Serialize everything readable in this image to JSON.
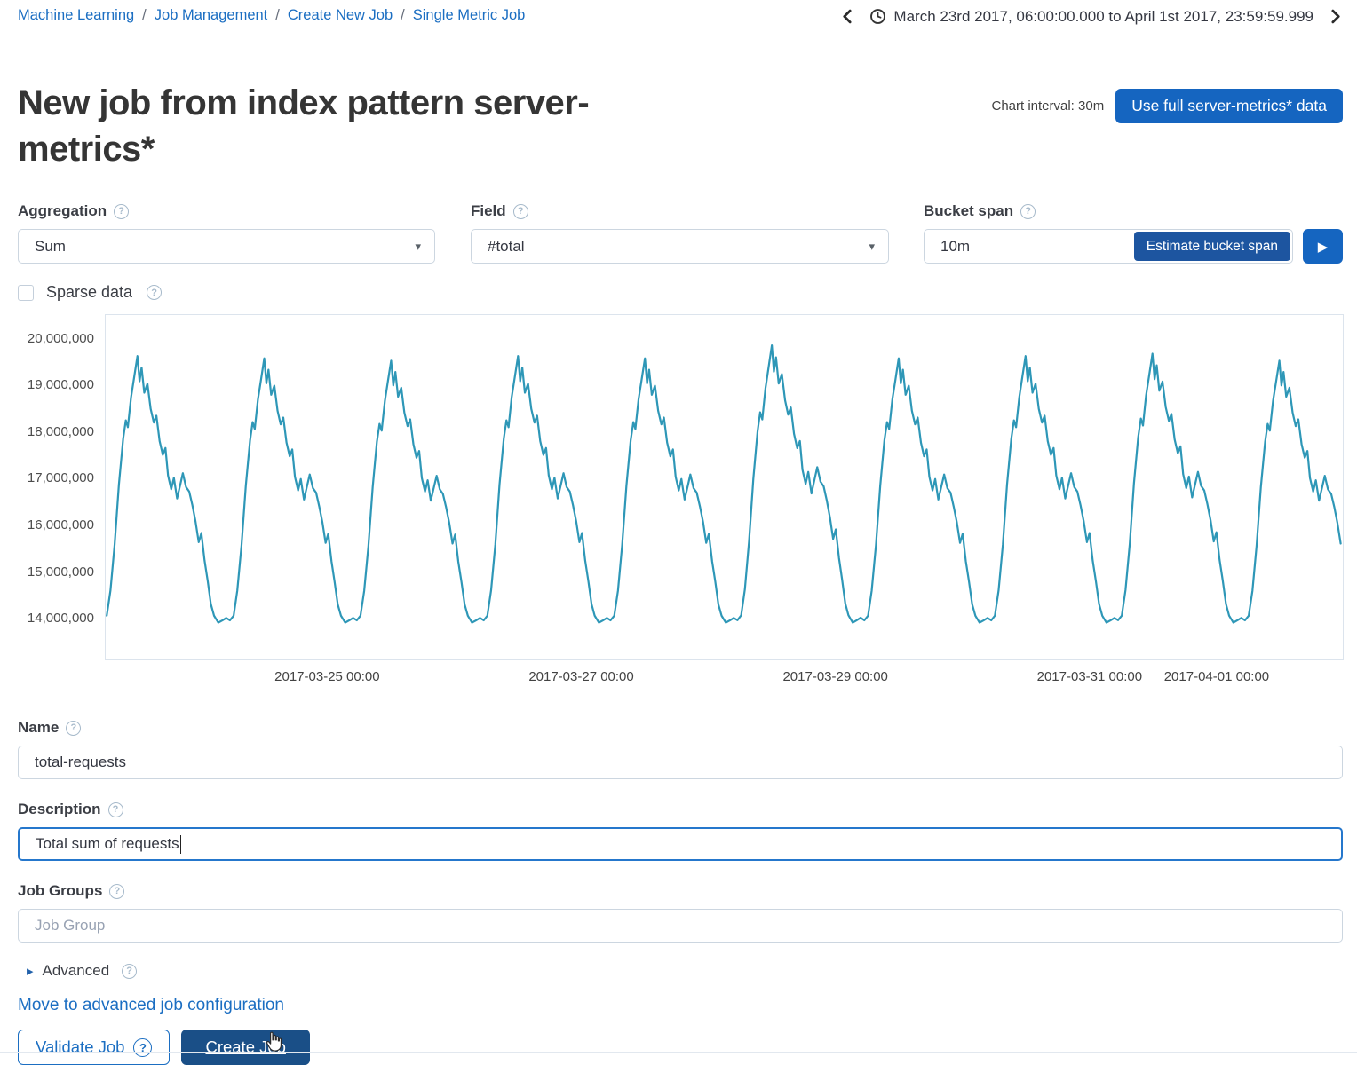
{
  "breadcrumb": {
    "separator": "/",
    "items": [
      "Machine Learning",
      "Job Management",
      "Create New Job",
      "Single Metric Job"
    ]
  },
  "timepicker": {
    "range": "March 23rd 2017, 06:00:00.000 to April 1st 2017, 23:59:59.999"
  },
  "header": {
    "title": "New job from index pattern server-metrics*",
    "chart_interval_label": "Chart interval: 30m",
    "full_data_button": "Use full server-metrics* data"
  },
  "form": {
    "aggregation": {
      "label": "Aggregation",
      "value": "Sum"
    },
    "field": {
      "label": "Field",
      "value": "#total"
    },
    "bucket_span": {
      "label": "Bucket span",
      "value": "10m",
      "estimate_button": "Estimate bucket span"
    },
    "sparse_data_label": "Sparse data",
    "name": {
      "label": "Name",
      "value": "total-requests"
    },
    "description": {
      "label": "Description",
      "value": "Total sum of requests"
    },
    "job_groups": {
      "label": "Job Groups",
      "placeholder": "Job Group"
    },
    "advanced_label": "Advanced",
    "advanced_link": "Move to advanced job configuration",
    "validate_button": "Validate Job",
    "create_button": "Create Job"
  },
  "icons": {
    "help": "?",
    "dropdown_caret": "▾",
    "play": "▶",
    "advanced_arrow": "▸"
  },
  "colors": {
    "link_blue": "#1b6ec2",
    "primary_button_blue": "#1565c0",
    "estimate_button_blue": "#1d55a0",
    "create_button_blue": "#1a4f87",
    "chart_line_teal": "#2e97b7"
  },
  "chart_data": {
    "type": "line",
    "title": "",
    "xlabel": "",
    "ylabel": "",
    "grid": false,
    "legend": false,
    "line_color": "#2e97b7",
    "x_domain": {
      "start": "2017-03-23 06:00",
      "end": "2017-04-02 00:00",
      "hours": 234
    },
    "x_ticks": [
      {
        "hours": 42,
        "label": "2017-03-25 00:00"
      },
      {
        "hours": 90,
        "label": "2017-03-27 00:00"
      },
      {
        "hours": 138,
        "label": "2017-03-29 00:00"
      },
      {
        "hours": 186,
        "label": "2017-03-31 00:00"
      },
      {
        "hours": 210,
        "label": "2017-04-01 00:00"
      }
    ],
    "y_ticks": [
      {
        "value": 20000000,
        "label": "20,000,000"
      },
      {
        "value": 19000000,
        "label": "19,000,000"
      },
      {
        "value": 18000000,
        "label": "18,000,000"
      },
      {
        "value": 17000000,
        "label": "17,000,000"
      },
      {
        "value": 16000000,
        "label": "16,000,000"
      },
      {
        "value": 15000000,
        "label": "15,000,000"
      },
      {
        "value": 14000000,
        "label": "14,000,000"
      }
    ],
    "ylim": [
      13105000,
      20533000
    ],
    "series": [
      {
        "name": "sum(total)",
        "pattern": "repeating daily cycle, ~10 cycles over the span",
        "period_hours": 24,
        "first_trough_hour": -0.5,
        "num_days": 10,
        "baseline_millions": 13.9,
        "template_peak_millions": 19.7,
        "daily_peaks_millions": [
          19.65,
          19.6,
          19.55,
          19.65,
          19.6,
          19.88,
          19.6,
          19.65,
          19.7,
          19.55
        ],
        "daily_template": {
          "hours_from_trough": [
            0,
            0.7,
            1.4,
            2.2,
            3,
            3.8,
            4.3,
            4.7,
            5.3,
            5.9,
            6.5,
            6.9,
            7.3,
            7.8,
            8.4,
            9,
            9.6,
            10.1,
            10.7,
            11.3,
            11.8,
            12.3,
            12.9,
            13.4,
            14,
            14.6,
            15.1,
            15.7,
            16.3,
            16.9,
            17.5,
            18.1,
            18.6,
            19.2,
            19.8,
            20.4,
            21,
            21.8,
            22.6,
            23.3
          ],
          "values_millions": [
            13.95,
            14.05,
            14.6,
            15.6,
            16.9,
            17.9,
            18.3,
            18.15,
            18.8,
            19.25,
            19.7,
            19.15,
            19.45,
            18.9,
            19.1,
            18.55,
            18.25,
            18.4,
            17.85,
            17.55,
            17.7,
            17.1,
            16.8,
            17.05,
            16.6,
            16.9,
            17.15,
            16.85,
            16.75,
            16.45,
            16.1,
            15.65,
            15.85,
            15.25,
            14.8,
            14.3,
            14.05,
            13.9,
            13.95,
            14.0
          ]
        }
      }
    ]
  }
}
